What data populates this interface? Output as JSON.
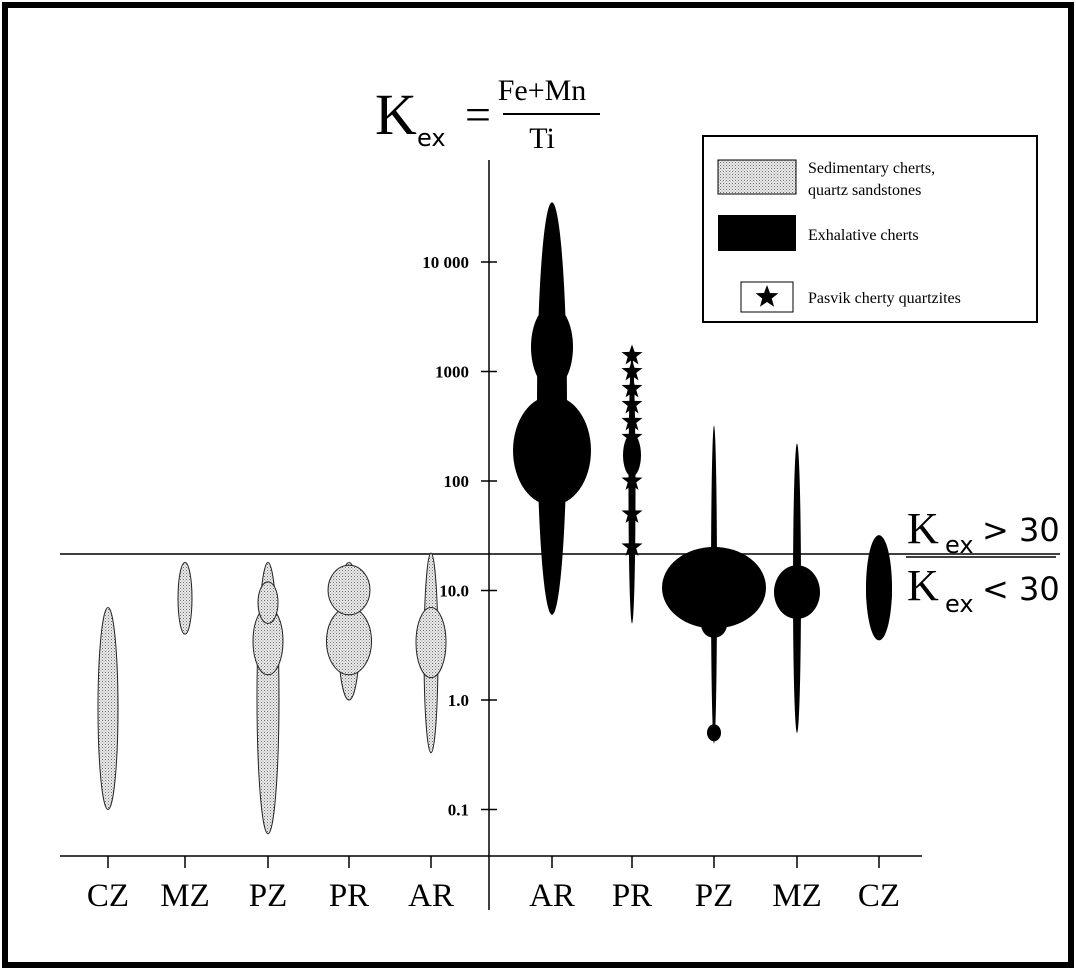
{
  "chart_data": {
    "type": "other",
    "formula": {
      "lhs_main": "K",
      "lhs_sub": "ex",
      "eq": "=",
      "numerator": "Fe+Mn",
      "denominator": "Ti"
    },
    "y_axis": {
      "scale": "log",
      "tick_values": [
        0.1,
        1,
        10,
        100,
        1000,
        10000
      ],
      "tick_labels": [
        "0.1",
        "1.0",
        "10.0",
        "100",
        "1000",
        "10 000"
      ]
    },
    "threshold": {
      "value": 30,
      "upper_label": {
        "main": "K",
        "sub": "ex",
        "rest": "> 30"
      },
      "lower_label": {
        "main": "K",
        "sub": "ex",
        "rest": "< 30"
      }
    },
    "categories": [
      "CZ",
      "MZ",
      "PZ",
      "PR",
      "AR",
      "AR",
      "PR",
      "PZ",
      "MZ",
      "CZ"
    ],
    "series": [
      {
        "name": "Sedimentary charts, quartz sandstones",
        "legend_line1": "Sedimentary cherts,",
        "legend_line2": "quartz sandstones",
        "color": "#d4d4d4",
        "pattern": "stipple"
      },
      {
        "name": "Exhalative cherts",
        "legend_line1": "Exhalative cherts",
        "color": "#000000"
      },
      {
        "name": "Pasvik cherty quartzites",
        "legend_line1": "Pasvik cherty quartzites",
        "color": "#000000",
        "marker": "star"
      }
    ],
    "groups": [
      {
        "category": "CZ",
        "series": 0,
        "min": 0.1,
        "max": 7,
        "bulges": []
      },
      {
        "category": "MZ",
        "series": 0,
        "min": 4,
        "max": 18,
        "bulges": []
      },
      {
        "category": "PZ",
        "series": 0,
        "min": 0.06,
        "max": 18,
        "bulges": [
          {
            "center": 3.5,
            "low": 1.7,
            "high": 7
          },
          {
            "center": 8,
            "low": 5,
            "high": 12
          }
        ]
      },
      {
        "category": "PR",
        "series": 0,
        "min": 1,
        "max": 18,
        "bulges": [
          {
            "center": 3.5,
            "low": 1.7,
            "high": 7
          },
          {
            "center": 10,
            "low": 6,
            "high": 17
          }
        ]
      },
      {
        "category": "AR",
        "series": 0,
        "min": 0.33,
        "max": 22,
        "bulges": [
          {
            "center": 3.5,
            "low": 1.6,
            "high": 7
          }
        ]
      },
      {
        "category": "AR",
        "series": 1,
        "min": 6,
        "max": 35000,
        "bulges": [
          {
            "center": 190,
            "low": 60,
            "high": 600
          },
          {
            "center": 1800,
            "low": 700,
            "high": 4000
          }
        ]
      },
      {
        "category": "PR",
        "series": 1,
        "min": 5,
        "max": 1400,
        "bulges": [
          {
            "center": 170,
            "low": 110,
            "high": 270
          }
        ]
      },
      {
        "category": "PZ",
        "series": 1,
        "min": 0.4,
        "max": 320,
        "bulges": [
          {
            "center": 11,
            "low": 4.5,
            "high": 25
          },
          {
            "center": 5,
            "low": 3.7,
            "high": 6.5
          },
          {
            "center": 0.5,
            "low": 0.42,
            "high": 0.6
          }
        ]
      },
      {
        "category": "MZ",
        "series": 1,
        "min": 0.5,
        "max": 220,
        "bulges": [
          {
            "center": 10,
            "low": 5.5,
            "high": 17
          }
        ]
      },
      {
        "category": "CZ",
        "series": 1,
        "min": 3.5,
        "max": 32,
        "bulges": [
          {
            "center": 10,
            "low": 4.5,
            "high": 22
          }
        ]
      }
    ],
    "pasvik_points": [
      1400,
      1000,
      700,
      500,
      350,
      250,
      100,
      50,
      25
    ],
    "legend_position": "top-right",
    "grid": false
  }
}
